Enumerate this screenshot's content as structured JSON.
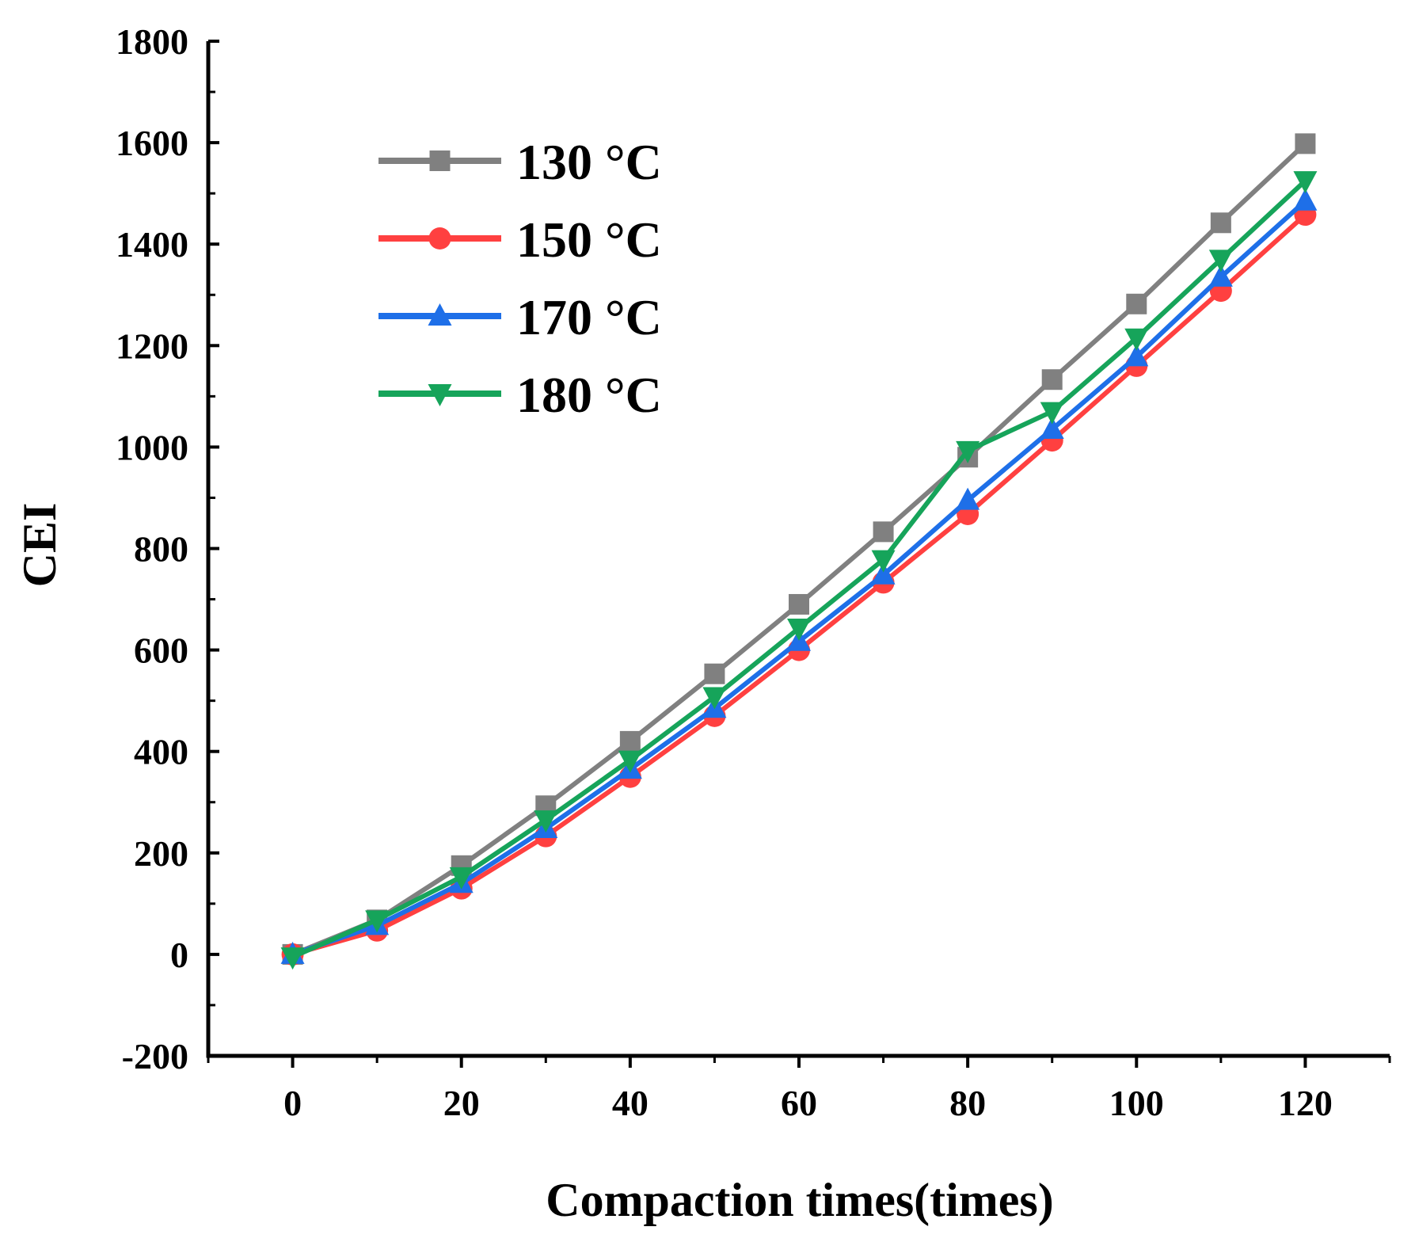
{
  "chart_data": {
    "type": "line",
    "title": "",
    "xlabel": "Compaction times(times)",
    "ylabel": "CEI",
    "xlim": [
      -10,
      130
    ],
    "ylim": [
      -200,
      1800
    ],
    "x_ticks": [
      0,
      20,
      40,
      60,
      80,
      100,
      120
    ],
    "y_ticks": [
      -200,
      0,
      200,
      400,
      600,
      800,
      1000,
      1200,
      1400,
      1600,
      1800
    ],
    "x_tick_labels": [
      "0",
      "20",
      "40",
      "60",
      "80",
      "100",
      "120"
    ],
    "y_tick_labels": [
      "-200",
      "0",
      "200",
      "400",
      "600",
      "800",
      "1000",
      "1200",
      "1400",
      "1600",
      "1800"
    ],
    "grid": false,
    "legend_position": "top-left",
    "x": [
      0,
      10,
      20,
      30,
      40,
      50,
      60,
      70,
      80,
      90,
      100,
      110,
      120
    ],
    "series": [
      {
        "name": "130 °C",
        "color": "#808080",
        "marker": "square",
        "values": [
          0,
          68,
          175,
          293,
          420,
          553,
          690,
          833,
          980,
          1133,
          1282,
          1442,
          1598
        ]
      },
      {
        "name": "150 °C",
        "color": "#ff4040",
        "marker": "circle",
        "values": [
          0,
          47,
          130,
          233,
          350,
          470,
          600,
          733,
          868,
          1013,
          1160,
          1308,
          1458
        ]
      },
      {
        "name": "170 °C",
        "color": "#1e6fe8",
        "marker": "triangle-up",
        "values": [
          0,
          57,
          140,
          248,
          365,
          485,
          617,
          748,
          895,
          1035,
          1178,
          1335,
          1485
        ]
      },
      {
        "name": "180 °C",
        "color": "#16a45a",
        "marker": "triangle-down",
        "values": [
          -5,
          68,
          153,
          265,
          383,
          508,
          643,
          778,
          993,
          1070,
          1215,
          1370,
          1525
        ]
      }
    ]
  }
}
